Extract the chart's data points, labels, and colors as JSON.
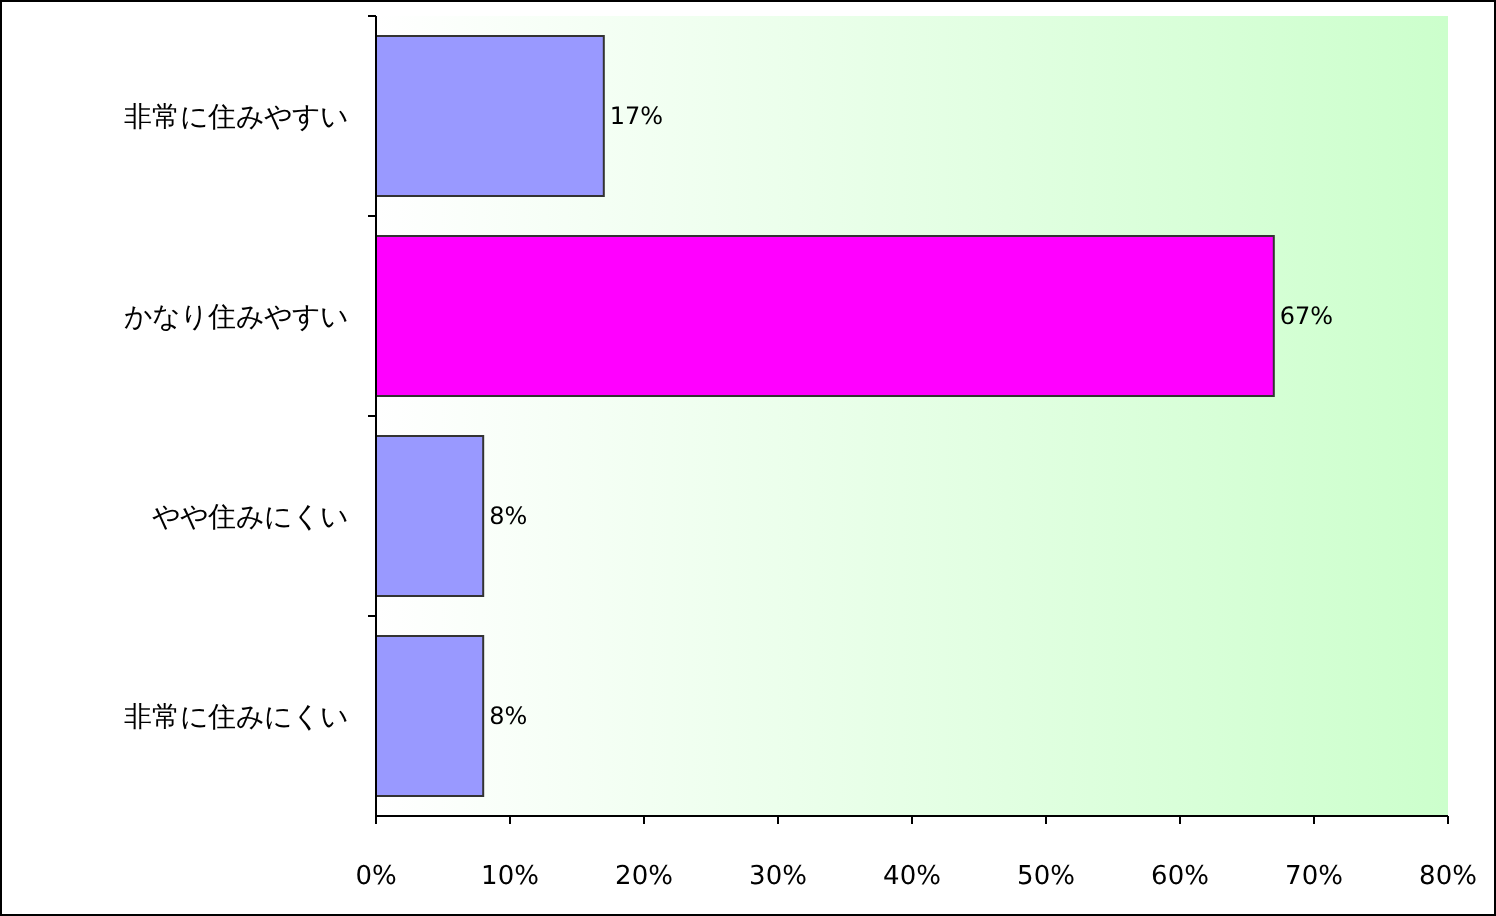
{
  "chart_data": {
    "type": "bar",
    "orientation": "horizontal",
    "categories": [
      "非常に住みやすい",
      "かなり住みやすい",
      "やや住みにくい",
      "非常に住みにくい"
    ],
    "values": [
      17,
      67,
      8,
      8
    ],
    "colors": [
      "#9999ff",
      "#ff00ff",
      "#9999ff",
      "#9999ff"
    ],
    "value_labels": [
      "17%",
      "67%",
      "8%",
      "8%"
    ],
    "xlim": [
      0,
      80
    ],
    "xticks": [
      {
        "value": 0,
        "label": "0%"
      },
      {
        "value": 10,
        "label": "10%"
      },
      {
        "value": 20,
        "label": "20%"
      },
      {
        "value": 30,
        "label": "30%"
      },
      {
        "value": 40,
        "label": "40%"
      },
      {
        "value": 50,
        "label": "50%"
      },
      {
        "value": 60,
        "label": "60%"
      },
      {
        "value": 70,
        "label": "70%"
      },
      {
        "value": 80,
        "label": "80%"
      }
    ],
    "grid": false
  }
}
